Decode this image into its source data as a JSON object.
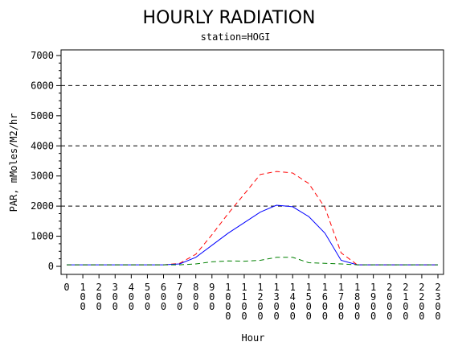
{
  "chart_data": {
    "type": "line",
    "title": "HOURLY RADIATION",
    "subtitle": "station=HOGI",
    "xlabel": "Hour",
    "ylabel": "PAR, mMoles/M2/hr",
    "x": [
      0,
      100,
      200,
      300,
      400,
      500,
      600,
      700,
      800,
      900,
      1000,
      1100,
      1200,
      1300,
      1400,
      1500,
      1600,
      1700,
      1800,
      1900,
      2000,
      2100,
      2200,
      2300
    ],
    "xlim": [
      0,
      2300
    ],
    "ylim": [
      0,
      7000
    ],
    "yticks": [
      0,
      1000,
      2000,
      3000,
      4000,
      5000,
      6000,
      7000
    ],
    "reference_lines": [
      2000,
      4000,
      6000
    ],
    "grid": false,
    "legend": "none",
    "series": [
      {
        "color": "#ff0000",
        "dash": "dashed",
        "values": [
          50,
          50,
          50,
          50,
          50,
          50,
          50,
          100,
          400,
          1050,
          1750,
          2400,
          3050,
          3150,
          3100,
          2750,
          1950,
          450,
          50,
          50,
          50,
          50,
          50,
          50
        ]
      },
      {
        "color": "#0000ff",
        "dash": "solid",
        "values": [
          50,
          50,
          50,
          50,
          50,
          50,
          50,
          80,
          300,
          700,
          1100,
          1450,
          1800,
          2030,
          1980,
          1650,
          1100,
          200,
          50,
          50,
          50,
          50,
          50,
          50
        ]
      },
      {
        "color": "#008000",
        "dash": "dashed",
        "values": [
          50,
          50,
          50,
          50,
          50,
          50,
          50,
          50,
          80,
          150,
          180,
          170,
          200,
          300,
          300,
          120,
          100,
          80,
          50,
          50,
          50,
          50,
          50,
          50
        ]
      }
    ]
  }
}
